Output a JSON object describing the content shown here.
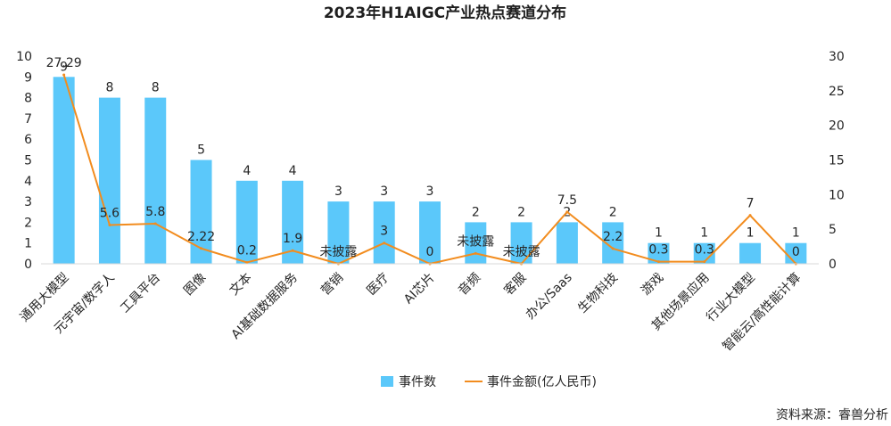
{
  "chart_data": {
    "type": "bar",
    "title": "2023年H1AIGC产业热点赛道分布",
    "categories": [
      "通用大模型",
      "元宇宙/数字人",
      "工具平台",
      "图像",
      "文本",
      "AI基础数据服务",
      "营销",
      "医疗",
      "AI芯片",
      "音频",
      "客服",
      "办公/Saas",
      "生物科技",
      "游戏",
      "其他场景应用",
      "行业大模型",
      "智能云/高性能计算"
    ],
    "series": [
      {
        "name": "事件数",
        "kind": "bar",
        "axis": "left",
        "color": "#5bc8fa",
        "values": [
          9,
          8,
          8,
          5,
          4,
          4,
          3,
          3,
          3,
          2,
          2,
          2,
          2,
          1,
          1,
          1,
          1
        ],
        "labels": [
          "9",
          "8",
          "8",
          "5",
          "4",
          "4",
          "3",
          "3",
          "3",
          "2",
          "2",
          "2",
          "2",
          "1",
          "1",
          "1",
          "1"
        ]
      },
      {
        "name": "事件金额(亿人民币)",
        "kind": "line",
        "axis": "right",
        "color": "#f28c1e",
        "values": [
          27.29,
          5.6,
          5.8,
          2.22,
          0.2,
          1.9,
          0,
          3,
          0,
          1.5,
          0,
          7.5,
          2.2,
          0.3,
          0.3,
          7,
          0
        ],
        "labels": [
          "27.29",
          "5.6",
          "5.8",
          "2.22",
          "0.2",
          "1.9",
          "未披露",
          "3",
          "0",
          "未披露",
          "未披露",
          "7.5",
          "2.2",
          "0.3",
          "0.3",
          "7",
          "0"
        ]
      }
    ],
    "y_left": {
      "min": 0,
      "max": 10,
      "ticks": [
        0,
        1,
        2,
        3,
        4,
        5,
        6,
        7,
        8,
        9,
        10
      ]
    },
    "y_right": {
      "min": 0,
      "max": 30,
      "ticks": [
        0,
        5,
        10,
        15,
        20,
        25,
        30
      ]
    },
    "grid": false,
    "legend_position": "bottom",
    "source": "资料来源：睿兽分析"
  }
}
